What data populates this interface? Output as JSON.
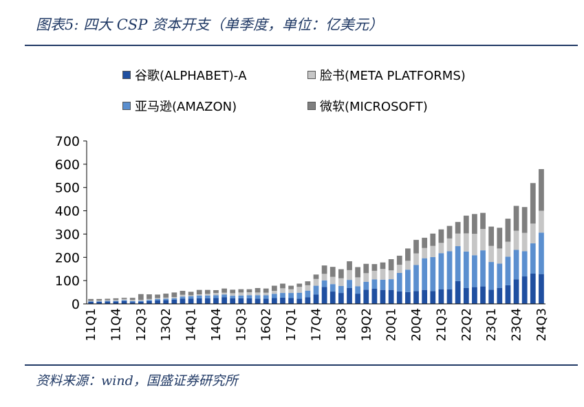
{
  "header": {
    "title": "图表5: 四大 CSP 资本开支（单季度，单位：亿美元）"
  },
  "footer": {
    "source": "资料来源：wind，国盛证券研究所"
  },
  "colors": {
    "alphabet": "#1f4fa0",
    "meta": "#c6c6c6",
    "amazon": "#5b8fcf",
    "microsoft": "#7f7f7f",
    "accent": "#1f3864"
  },
  "chart_data": {
    "type": "bar",
    "stacked": true,
    "ylim": [
      0,
      700
    ],
    "yticks": [
      0,
      100,
      200,
      300,
      400,
      500,
      600,
      700
    ],
    "legend_position": "top",
    "categories": [
      "11Q1",
      "11Q2",
      "11Q3",
      "11Q4",
      "12Q1",
      "12Q2",
      "12Q3",
      "12Q4",
      "13Q1",
      "13Q2",
      "13Q3",
      "13Q4",
      "14Q1",
      "14Q2",
      "14Q3",
      "14Q4",
      "15Q1",
      "15Q2",
      "15Q3",
      "15Q4",
      "16Q1",
      "16Q2",
      "16Q3",
      "16Q4",
      "17Q1",
      "17Q2",
      "17Q3",
      "17Q4",
      "18Q1",
      "18Q2",
      "18Q3",
      "18Q4",
      "19Q1",
      "19Q2",
      "19Q3",
      "19Q4",
      "20Q1",
      "20Q2",
      "20Q3",
      "20Q4",
      "21Q1",
      "21Q2",
      "21Q3",
      "21Q4",
      "22Q1",
      "22Q2",
      "22Q3",
      "22Q4",
      "23Q1",
      "23Q2",
      "23Q3",
      "23Q4",
      "24Q1",
      "24Q2",
      "24Q3"
    ],
    "tick_labels": [
      "11Q1",
      "11Q4",
      "12Q3",
      "13Q2",
      "14Q1",
      "14Q4",
      "15Q3",
      "16Q2",
      "17Q1",
      "17Q4",
      "18Q3",
      "19Q2",
      "20Q1",
      "20Q4",
      "21Q3",
      "22Q2",
      "23Q1",
      "23Q4",
      "24Q3"
    ],
    "series": [
      {
        "name": "谷歌(ALPHABET)-A",
        "color_key": "alphabet",
        "values": [
          9,
          9,
          10,
          10,
          12,
          8,
          9,
          12,
          15,
          16,
          18,
          23,
          23,
          24,
          24,
          25,
          29,
          24,
          24,
          24,
          22,
          22,
          25,
          27,
          25,
          22,
          28,
          40,
          73,
          53,
          47,
          68,
          44,
          61,
          65,
          60,
          60,
          54,
          51,
          55,
          60,
          55,
          63,
          63,
          98,
          68,
          72,
          75,
          61,
          68,
          80,
          105,
          118,
          130,
          128
        ]
      },
      {
        "name": "亚马逊(AMAZON)",
        "color_key": "amazon",
        "values": [
          2,
          2,
          3,
          3,
          4,
          4,
          4,
          5,
          6,
          6,
          6,
          8,
          10,
          12,
          12,
          12,
          11,
          11,
          12,
          13,
          15,
          15,
          18,
          20,
          22,
          26,
          29,
          38,
          28,
          32,
          30,
          35,
          32,
          34,
          40,
          44,
          46,
          79,
          96,
          112,
          136,
          146,
          155,
          163,
          150,
          157,
          137,
          155,
          119,
          105,
          123,
          127,
          108,
          130,
          178
        ]
      },
      {
        "name": "脸书(META PLATFORMS)",
        "color_key": "meta",
        "values": [
          2,
          3,
          3,
          4,
          5,
          5,
          4,
          4,
          4,
          5,
          5,
          8,
          4,
          5,
          7,
          10,
          8,
          11,
          13,
          13,
          12,
          11,
          13,
          20,
          16,
          25,
          23,
          29,
          28,
          31,
          33,
          42,
          38,
          37,
          37,
          46,
          38,
          35,
          38,
          50,
          44,
          48,
          44,
          55,
          54,
          78,
          92,
          92,
          69,
          65,
          64,
          82,
          79,
          85,
          94
        ]
      },
      {
        "name": "微软(MICROSOFT)",
        "color_key": "microsoft",
        "values": [
          8,
          7,
          6,
          7,
          5,
          9,
          25,
          20,
          15,
          17,
          20,
          17,
          15,
          19,
          17,
          12,
          18,
          15,
          14,
          13,
          19,
          18,
          22,
          20,
          15,
          14,
          17,
          19,
          36,
          43,
          39,
          38,
          44,
          40,
          29,
          28,
          48,
          39,
          53,
          58,
          44,
          53,
          58,
          54,
          50,
          76,
          85,
          69,
          83,
          89,
          99,
          107,
          111,
          174,
          179
        ]
      }
    ]
  }
}
